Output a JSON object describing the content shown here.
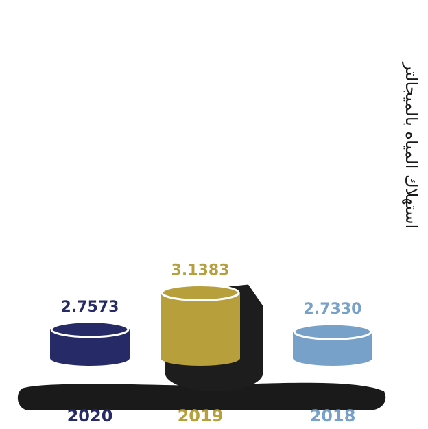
{
  "chart_data": {
    "type": "bar",
    "style": "3d-cylinder",
    "ylabel": "استهلاك المياه بالميجالتر",
    "categories": [
      "2020",
      "2019",
      "2018"
    ],
    "values": [
      2.7573,
      3.1383,
      2.733
    ],
    "value_labels": [
      "2.7573",
      "3.1383",
      "2.7330"
    ],
    "colors": [
      "#262a66",
      "#b79f3b",
      "#78a1c9"
    ],
    "grid": false,
    "legend": "none"
  }
}
